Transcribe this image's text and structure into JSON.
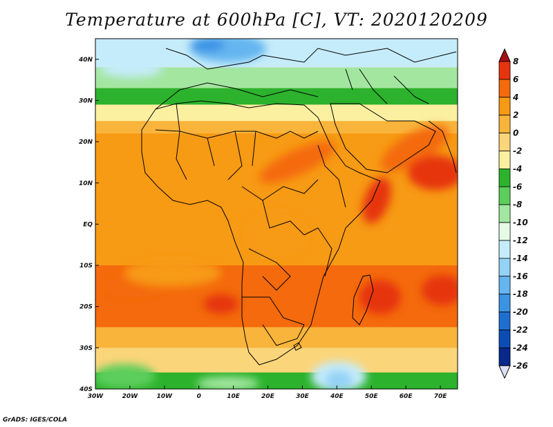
{
  "title": "Temperature at 600hPa [C], VT: 2020120209",
  "credit": "GrADS: IGES/COLA",
  "map": {
    "lon_range": [
      -30,
      75
    ],
    "lat_range": [
      -40,
      45
    ],
    "lon_ticks": [
      "30W",
      "20W",
      "10W",
      "0",
      "10E",
      "20E",
      "30E",
      "40E",
      "50E",
      "60E",
      "70E"
    ],
    "lat_ticks": [
      "40N",
      "30N",
      "20N",
      "10N",
      "EQ",
      "10S",
      "20S",
      "30S",
      "40S"
    ],
    "field_bands": [
      {
        "lat_from": 45,
        "lat_to": 38,
        "temp_c": -14
      },
      {
        "lat_from": 38,
        "lat_to": 33,
        "temp_c": -9
      },
      {
        "lat_from": 33,
        "lat_to": 29,
        "temp_c": -6
      },
      {
        "lat_from": 29,
        "lat_to": 25,
        "temp_c": -3
      },
      {
        "lat_from": 25,
        "lat_to": 22,
        "temp_c": 0
      },
      {
        "lat_from": 22,
        "lat_to": -10,
        "temp_c": 3
      },
      {
        "lat_from": -10,
        "lat_to": -25,
        "temp_c": 4
      },
      {
        "lat_from": -25,
        "lat_to": -30,
        "temp_c": 1
      },
      {
        "lat_from": -30,
        "lat_to": -36,
        "temp_c": -2
      },
      {
        "lat_from": -36,
        "lat_to": -40,
        "temp_c": -5
      }
    ]
  },
  "colorbar": {
    "labels": [
      "8",
      "6",
      "4",
      "2",
      "0",
      "-2",
      "-4",
      "-6",
      "-8",
      "-10",
      "-12",
      "-14",
      "-16",
      "-18",
      "-20",
      "-22",
      "-24",
      "-26"
    ],
    "colors": [
      "#a50f15",
      "#e6340f",
      "#f46a0c",
      "#f79a14",
      "#f9b43c",
      "#fbd57a",
      "#fbefa0",
      "#2cb22c",
      "#5cce5c",
      "#a3e6a0",
      "#e6fbe6",
      "#c5ecfa",
      "#94d2f6",
      "#65b5f0",
      "#3b93e4",
      "#1f6fd1",
      "#0c4cb4",
      "#08288c",
      "#0c0c5a"
    ]
  }
}
